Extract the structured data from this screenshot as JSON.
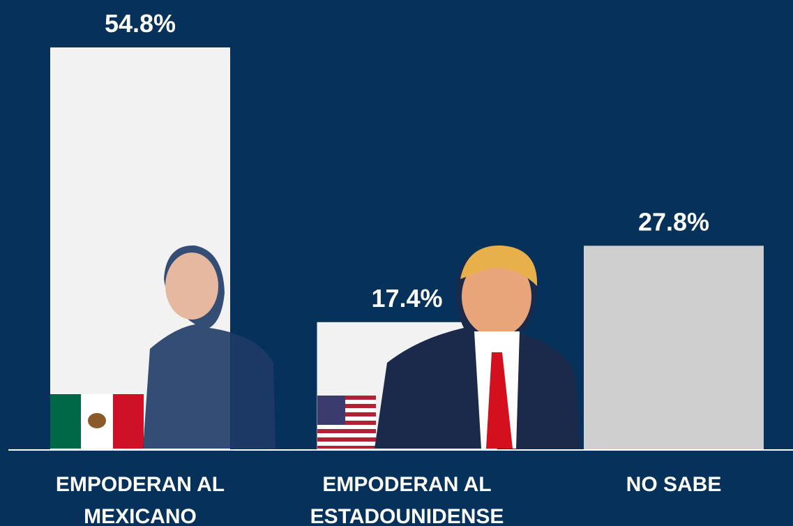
{
  "chart_data": {
    "type": "bar",
    "categories": [
      "EMPODERAN AL MEXICANO",
      "EMPODERAN AL ESTADOUNIDENSE",
      "NO SABE"
    ],
    "values": [
      54.8,
      17.4,
      27.8
    ],
    "value_labels": [
      "54.8%",
      "17.4%",
      "27.8%"
    ],
    "colors": [
      "#f2f2f2",
      "#f2f2f2",
      "#d0cfcf"
    ]
  }
}
